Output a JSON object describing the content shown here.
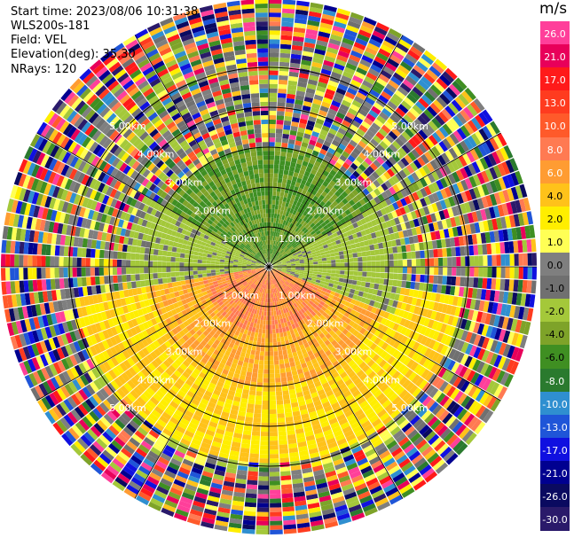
{
  "header": {
    "start_time": "Start time: 2023/08/06 10:31:38",
    "instrument": "WLS200s-181",
    "field": "Field: VEL",
    "elevation": "Elevation(deg): 35.30",
    "nrays": "NRays: 120"
  },
  "chart_data": {
    "type": "heatmap",
    "projection": "polar-ppi",
    "colorbar_unit": "m/s",
    "colorbar_ticks": [
      "26.0",
      "21.0",
      "17.0",
      "13.0",
      "10.0",
      "8.0",
      "6.0",
      "4.0",
      "2.0",
      "1.0",
      "0.0",
      "-1.0",
      "-2.0",
      "-4.0",
      "-6.0",
      "-8.0",
      "-10.0",
      "-13.0",
      "-17.0",
      "-21.0",
      "-26.0",
      "-30.0"
    ],
    "colorbar_colors": [
      "#ff3f9a",
      "#e8005a",
      "#ff1a1a",
      "#ff3b1f",
      "#ff5a2a",
      "#ff7a52",
      "#ff9c32",
      "#ffc21a",
      "#ffee00",
      "#ffff55",
      "#7f7f7f",
      "#707070",
      "#a4c83a",
      "#7ea329",
      "#3f8f22",
      "#2a7a2e",
      "#2f8fd0",
      "#1f55d8",
      "#1010e0",
      "#000090",
      "#0a0a60",
      "#2a1a6a"
    ],
    "range_ring_labels": [
      "1.00km",
      "2.00km",
      "3.00km",
      "4.00km",
      "5.00km"
    ],
    "ring_ranges_km": [
      1,
      2,
      3,
      4,
      5
    ],
    "nrays": 120,
    "max_range_km": 5.0,
    "velocity_regions": [
      {
        "sector": "north (azimuth 300-60 deg)",
        "range_km": [
          0,
          2.2
        ],
        "velocity": -5
      },
      {
        "sector": "east (azimuth 60-110 deg)",
        "range_km": [
          0,
          2.5
        ],
        "velocity": -2
      },
      {
        "sector": "south (azimuth 100-260 deg)",
        "range_km": [
          0,
          1.2
        ],
        "velocity": 7
      },
      {
        "sector": "south (azimuth 100-260 deg)",
        "range_km": [
          1.2,
          2.2
        ],
        "velocity": 5
      },
      {
        "sector": "south (azimuth 100-260 deg)",
        "range_km": [
          2.2,
          3.6
        ],
        "velocity": 3
      },
      {
        "sector": "west (azimuth 260-300 deg)",
        "range_km": [
          0,
          2.6
        ],
        "velocity": -2
      }
    ],
    "noise_beyond_km": 4.0
  }
}
